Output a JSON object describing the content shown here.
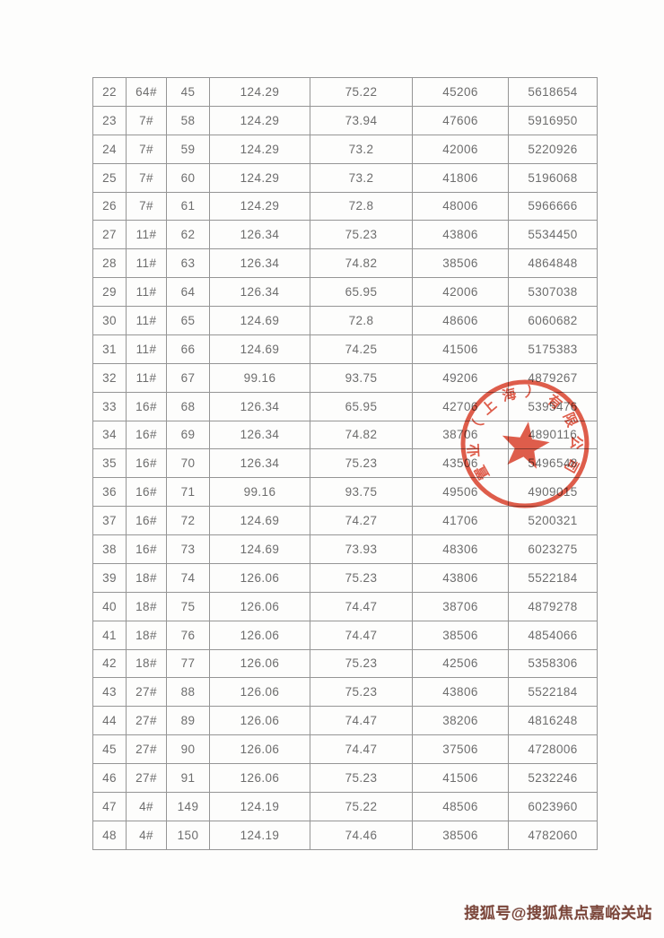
{
  "table": {
    "border_color": "#959595",
    "text_color": "#6d6d6d",
    "rows": [
      [
        "22",
        "64#",
        "45",
        "124.29",
        "75.22",
        "45206",
        "5618654"
      ],
      [
        "23",
        "7#",
        "58",
        "124.29",
        "73.94",
        "47606",
        "5916950"
      ],
      [
        "24",
        "7#",
        "59",
        "124.29",
        "73.2",
        "42006",
        "5220926"
      ],
      [
        "25",
        "7#",
        "60",
        "124.29",
        "73.2",
        "41806",
        "5196068"
      ],
      [
        "26",
        "7#",
        "61",
        "124.29",
        "72.8",
        "48006",
        "5966666"
      ],
      [
        "27",
        "11#",
        "62",
        "126.34",
        "75.23",
        "43806",
        "5534450"
      ],
      [
        "28",
        "11#",
        "63",
        "126.34",
        "74.82",
        "38506",
        "4864848"
      ],
      [
        "29",
        "11#",
        "64",
        "126.34",
        "65.95",
        "42006",
        "5307038"
      ],
      [
        "30",
        "11#",
        "65",
        "124.69",
        "72.8",
        "48606",
        "6060682"
      ],
      [
        "31",
        "11#",
        "66",
        "124.69",
        "74.25",
        "41506",
        "5175383"
      ],
      [
        "32",
        "11#",
        "67",
        "99.16",
        "93.75",
        "49206",
        "4879267"
      ],
      [
        "33",
        "16#",
        "68",
        "126.34",
        "65.95",
        "42706",
        "5395476"
      ],
      [
        "34",
        "16#",
        "69",
        "126.34",
        "74.82",
        "38706",
        "4890116"
      ],
      [
        "35",
        "16#",
        "70",
        "126.34",
        "75.23",
        "43506",
        "5496548"
      ],
      [
        "36",
        "16#",
        "71",
        "99.16",
        "93.75",
        "49506",
        "4909015"
      ],
      [
        "37",
        "16#",
        "72",
        "124.69",
        "74.27",
        "41706",
        "5200321"
      ],
      [
        "38",
        "16#",
        "73",
        "124.69",
        "73.93",
        "48306",
        "6023275"
      ],
      [
        "39",
        "18#",
        "74",
        "126.06",
        "75.23",
        "43806",
        "5522184"
      ],
      [
        "40",
        "18#",
        "75",
        "126.06",
        "74.47",
        "38706",
        "4879278"
      ],
      [
        "41",
        "18#",
        "76",
        "126.06",
        "74.47",
        "38506",
        "4854066"
      ],
      [
        "42",
        "18#",
        "77",
        "126.06",
        "75.23",
        "42506",
        "5358306"
      ],
      [
        "43",
        "27#",
        "88",
        "126.06",
        "75.23",
        "43806",
        "5522184"
      ],
      [
        "44",
        "27#",
        "89",
        "126.06",
        "74.47",
        "38206",
        "4816248"
      ],
      [
        "45",
        "27#",
        "90",
        "126.06",
        "74.47",
        "37506",
        "4728006"
      ],
      [
        "46",
        "27#",
        "91",
        "126.06",
        "75.23",
        "41506",
        "5232246"
      ],
      [
        "47",
        "4#",
        "149",
        "124.19",
        "75.22",
        "48506",
        "6023960"
      ],
      [
        "48",
        "4#",
        "150",
        "124.19",
        "74.46",
        "38506",
        "4782060"
      ]
    ]
  },
  "stamp": {
    "arc_text": "置业（上海）有限公司",
    "color": "#dc4733"
  },
  "watermark": {
    "text": "搜狐号@搜狐焦点嘉峪关站",
    "color": "#7b463a"
  }
}
